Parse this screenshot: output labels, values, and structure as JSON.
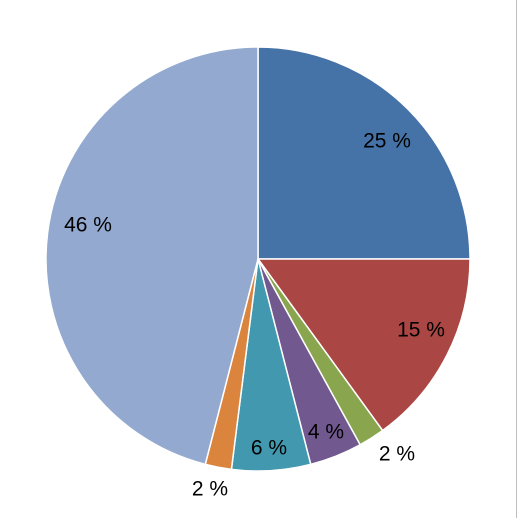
{
  "chart_data": {
    "type": "pie",
    "title": "",
    "slices": [
      {
        "value": 25,
        "label": "25 %",
        "color": "#4572a7"
      },
      {
        "value": 15,
        "label": "15 %",
        "color": "#aa4643"
      },
      {
        "value": 2,
        "label": "2 %",
        "color": "#89a54e"
      },
      {
        "value": 4,
        "label": "4 %",
        "color": "#71588f"
      },
      {
        "value": 6,
        "label": "6 %",
        "color": "#4198af"
      },
      {
        "value": 2,
        "label": "2 %",
        "color": "#db843d"
      },
      {
        "value": 46,
        "label": "46 %",
        "color": "#93a9cf"
      }
    ],
    "start_angle_deg": 0,
    "direction": "clockwise",
    "legend": "none"
  }
}
